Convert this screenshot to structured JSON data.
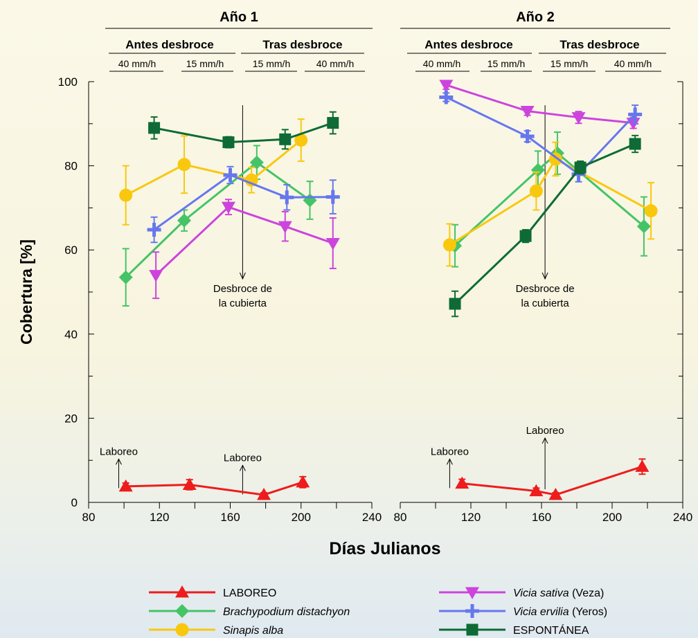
{
  "chart_data": {
    "type": "line",
    "ylabel": "Cobertura [%]",
    "xlabel": "Días Julianos",
    "ylim": [
      0,
      100
    ],
    "yticks": [
      0,
      20,
      40,
      60,
      80,
      100
    ],
    "xlim": [
      80,
      240
    ],
    "xticks": [
      80,
      120,
      160,
      200,
      240
    ],
    "panels": [
      {
        "title": "Año 1",
        "phase_labels": [
          "Antes desbroce",
          "Tras desbroce"
        ],
        "intensity_labels": [
          "40 mm/h",
          "15 mm/h",
          "15 mm/h",
          "40 mm/h"
        ],
        "annotations": [
          {
            "text": [
              "Desbroce de",
              "la cubierta"
            ],
            "x": 167,
            "y": 49
          },
          {
            "text": [
              "Laboreo"
            ],
            "x": 97,
            "y": 8
          },
          {
            "text": [
              "Laboreo"
            ],
            "x": 167,
            "y": 6.5
          }
        ],
        "series": [
          {
            "name": "LABOREO",
            "color": "#ee1c1c",
            "marker": "triangle-up",
            "x": [
              101,
              137,
              179,
              201
            ],
            "y": [
              3.8,
              4.2,
              1.8,
              4.8
            ],
            "err": [
              0.8,
              1.2,
              0.5,
              1.3
            ]
          },
          {
            "name": "Brachypodium distachyon",
            "color": "#44c466",
            "marker": "diamond",
            "x": [
              101,
              134,
              175,
              205
            ],
            "y": [
              53.5,
              67,
              80.8,
              71.8
            ],
            "err": [
              6.8,
              2.5,
              4,
              4.5
            ]
          },
          {
            "name": "Sinapis alba",
            "color": "#f9c80e",
            "marker": "circle",
            "x": [
              101,
              134,
              172,
              200
            ],
            "y": [
              73,
              80.3,
              76.6,
              86.1
            ],
            "err": [
              7,
              6.8,
              3,
              5
            ]
          },
          {
            "name": "Vicia sativa",
            "color": "#cc44dd",
            "marker": "triangle-down",
            "x": [
              118,
              159,
              191,
              218
            ],
            "y": [
              54,
              70.2,
              65.6,
              61.6
            ],
            "err": [
              5.5,
              1.8,
              3.5,
              6
            ]
          },
          {
            "name": "Vicia ervilia",
            "color": "#6677ee",
            "marker": "plus",
            "x": [
              117,
              160,
              192,
              218
            ],
            "y": [
              64.8,
              77.8,
              72.5,
              72.6
            ],
            "err": [
              3,
              2,
              3,
              4
            ]
          },
          {
            "name": "ESPONTÁNEA",
            "color": "#0e6b35",
            "marker": "square",
            "x": [
              117,
              159,
              191,
              218
            ],
            "y": [
              89,
              85.6,
              86.3,
              90.2
            ],
            "err": [
              2.6,
              1.3,
              2.3,
              2.6
            ]
          }
        ]
      },
      {
        "title": "Año 2",
        "phase_labels": [
          "Antes desbroce",
          "Tras desbroce"
        ],
        "intensity_labels": [
          "40 mm/h",
          "15 mm/h",
          "15 mm/h",
          "40 mm/h"
        ],
        "annotations": [
          {
            "text": [
              "Desbroce de",
              "la cubierta"
            ],
            "x": 162,
            "y": 49
          },
          {
            "text": [
              "Laboreo"
            ],
            "x": 108,
            "y": 8
          },
          {
            "text": [
              "Laboreo"
            ],
            "x": 162,
            "y": 13
          }
        ],
        "series": [
          {
            "name": "LABOREO",
            "color": "#ee1c1c",
            "marker": "triangle-up",
            "x": [
              115,
              157,
              168,
              217
            ],
            "y": [
              4.5,
              2.7,
              1.8,
              8.5
            ],
            "err": [
              1,
              0.7,
              0.5,
              1.8
            ]
          },
          {
            "name": "Brachypodium distachyon",
            "color": "#44c466",
            "marker": "diamond",
            "x": [
              111,
              158,
              169,
              218
            ],
            "y": [
              61,
              79,
              83,
              65.6
            ],
            "err": [
              5,
              4.5,
              5,
              7
            ]
          },
          {
            "name": "Sinapis alba",
            "color": "#f9c80e",
            "marker": "circle",
            "x": [
              108,
              157,
              168,
              222
            ],
            "y": [
              61.2,
              74,
              81.6,
              69.3
            ],
            "err": [
              5,
              4.5,
              4,
              6.7
            ]
          },
          {
            "name": "Vicia sativa",
            "color": "#cc44dd",
            "marker": "triangle-down",
            "x": [
              106,
              152,
              181,
              212
            ],
            "y": [
              99.2,
              93,
              91.5,
              90.2
            ],
            "err": [
              1,
              1,
              1.4,
              1.3
            ]
          },
          {
            "name": "Vicia ervilia",
            "color": "#6677ee",
            "marker": "plus",
            "x": [
              106,
              152,
              181,
              213
            ],
            "y": [
              96.3,
              87,
              78,
              92.2
            ],
            "err": [
              1,
              1.3,
              1.8,
              2.2
            ]
          },
          {
            "name": "ESPONTÁNEA",
            "color": "#0e6b35",
            "marker": "square",
            "x": [
              111,
              151,
              182,
              213
            ],
            "y": [
              47.2,
              63.3,
              79.6,
              85.2
            ],
            "err": [
              3,
              1.5,
              1.5,
              2
            ]
          }
        ]
      }
    ],
    "legend": [
      {
        "name": "LABOREO",
        "italic": "",
        "suffix": "",
        "color": "#ee1c1c",
        "marker": "triangle-up"
      },
      {
        "name": "Brachypodium distachyon",
        "italic": "Brachypodium distachyon",
        "suffix": "",
        "color": "#44c466",
        "marker": "diamond"
      },
      {
        "name": "Sinapis alba",
        "italic": "Sinapis alba",
        "suffix": "",
        "color": "#f9c80e",
        "marker": "circle"
      },
      {
        "name": "Vicia sativa (Veza)",
        "italic": "Vicia sativa",
        "suffix": " (Veza)",
        "color": "#cc44dd",
        "marker": "triangle-down"
      },
      {
        "name": "Vicia ervilia (Yeros)",
        "italic": "Vicia ervilia",
        "suffix": " (Yeros)",
        "color": "#6677ee",
        "marker": "plus"
      },
      {
        "name": "ESPONTÁNEA",
        "italic": "",
        "suffix": "",
        "color": "#0e6b35",
        "marker": "square"
      }
    ],
    "legend_position": "bottom",
    "grid": false
  }
}
